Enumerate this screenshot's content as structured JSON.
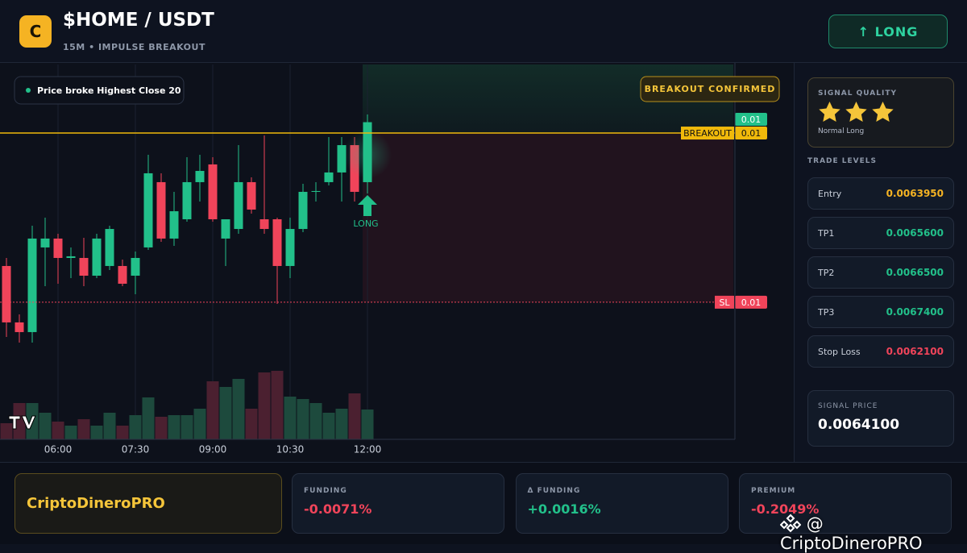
{
  "header": {
    "logo": "C",
    "title": "$HOME / USDT",
    "subtitle": "15M • IMPULSE BREAKOUT",
    "button": "↑ LONG"
  },
  "chart_data": {
    "type": "candlestick",
    "categories": [
      null,
      null,
      null,
      null,
      "06:00",
      null,
      null,
      null,
      null,
      null,
      "07:30",
      null,
      null,
      null,
      null,
      null,
      "09:00",
      null,
      null,
      null,
      null,
      null,
      "10:30",
      null,
      null,
      null,
      null,
      null,
      "12:00"
    ],
    "open": [
      0.0062496,
      0.0061879,
      0.0061773,
      0.0062699,
      0.0062796,
      0.0062584,
      0.0062584,
      0.006239,
      0.0062496,
      0.0062496,
      0.006239,
      0.0062699,
      0.0063413,
      0.0062796,
      0.0063007,
      0.0063413,
      0.0063607,
      0.0062796,
      0.0062901,
      0.0063413,
      0.0063007,
      0.0063007,
      0.0062496,
      0.0062901,
      0.0063307,
      0.0063413,
      0.0063519,
      0.0063818,
      0.0063413
    ],
    "high": [
      0.0062584,
      0.0061967,
      0.0062937,
      0.0063025,
      0.0062848,
      0.0062699,
      0.0062804,
      0.0062848,
      0.0062937,
      0.0062566,
      0.0062654,
      0.0063713,
      0.006351,
      0.0063307,
      0.0063686,
      0.0063713,
      0.0063686,
      0.0063007,
      0.0063818,
      0.0063466,
      0.0063924,
      0.0063025,
      0.0063025,
      0.0063395,
      0.0063413,
      0.0063906,
      0.0063906,
      0.0063906,
      0.0064153
    ],
    "low": [
      0.006172,
      0.0061658,
      0.0061658,
      0.0062275,
      0.0062302,
      0.0062363,
      0.0062275,
      0.0062363,
      0.0062452,
      0.0062275,
      0.0062187,
      0.0062672,
      0.006276,
      0.0062716,
      0.0062981,
      0.0063201,
      0.0062981,
      0.0062496,
      0.0062848,
      0.0063069,
      0.0062848,
      0.0062081,
      0.0062363,
      0.0062866,
      0.0063201,
      0.0063377,
      0.0063201,
      0.0063201,
      0.0063289
    ],
    "close": [
      0.0061879,
      0.0061773,
      0.0062796,
      0.0062796,
      0.0062584,
      0.0062602,
      0.006239,
      0.0062796,
      0.0062901,
      0.0062302,
      0.0062584,
      0.006351,
      0.0062796,
      0.0063095,
      0.0063413,
      0.0063536,
      0.0063007,
      0.0063007,
      0.0063413,
      0.0063113,
      0.0062901,
      0.0062496,
      0.0062901,
      0.0063307,
      0.0063316,
      0.0063519,
      0.0063818,
      0.0063307,
      0.0064069
    ],
    "volume": [
      20,
      45,
      45,
      33,
      22,
      17,
      25,
      17,
      33,
      17,
      30,
      52,
      28,
      30,
      30,
      38,
      72,
      65,
      75,
      38,
      83,
      85,
      53,
      50,
      45,
      33,
      38,
      57,
      37
    ],
    "ylim": [
      0.00606,
      0.00647
    ],
    "vlim": [
      0,
      100
    ],
    "up_color": "#22c08a",
    "down_color": "#f0445a",
    "volume_up_color": "#1d4a3d",
    "volume_down_color": "#4b2030",
    "grid": true,
    "levels": [
      {
        "value": 0.00641,
        "label": "0.01",
        "color": "#22c08a",
        "line": "none"
      },
      {
        "name": "BREAKOUT",
        "value": 0.006395,
        "label": "0.01",
        "color": "#f0b90b",
        "line": "solid"
      },
      {
        "name": "SL",
        "value": 0.00621,
        "label": "0.01",
        "color": "#f0445a",
        "line": "dotted"
      }
    ],
    "note": "Price broke Highest Close 20",
    "badge": "BREAKOUT CONFIRMED",
    "signal": "LONG"
  },
  "sidebar": {
    "quality": {
      "title": "SIGNAL QUALITY",
      "stars": 3,
      "label": "Normal Long"
    },
    "levels_title": "TRADE LEVELS",
    "levels": [
      {
        "name": "Entry",
        "value": "0.0063950",
        "color": "#f5b323"
      },
      {
        "name": "TP1",
        "value": "0.0065600",
        "color": "#22c08a"
      },
      {
        "name": "TP2",
        "value": "0.0066500",
        "color": "#22c08a"
      },
      {
        "name": "TP3",
        "value": "0.0067400",
        "color": "#22c08a"
      },
      {
        "name": "Stop Loss",
        "value": "0.0062100",
        "color": "#f0445a"
      }
    ],
    "signal_price": {
      "title": "SIGNAL PRICE",
      "value": "0.0064100"
    }
  },
  "footer": {
    "brand": "CriptoDineroPRO",
    "stats": [
      {
        "title": "FUNDING",
        "value": "-0.0071%",
        "color": "#f0445a"
      },
      {
        "title": "Δ FUNDING",
        "value": "+0.0016%",
        "color": "#22c08a"
      },
      {
        "title": "PREMIUM",
        "value": "-0.2049%",
        "color": "#f0445a"
      }
    ],
    "watermark": "@ CriptoDineroPRO"
  }
}
